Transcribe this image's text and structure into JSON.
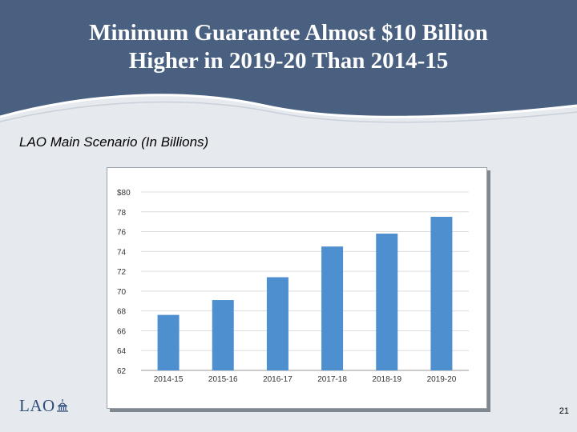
{
  "slide": {
    "title_line1": "Minimum Guarantee Almost $10 Billion",
    "title_line2": "Higher in 2019-20 Than 2014-15",
    "subtitle": "LAO Main Scenario (In Billions)",
    "logo_text": "LAO",
    "page_number": "21"
  },
  "colors": {
    "header_bg": "#4a6080",
    "bar": "#4e8fd0",
    "grid": "#dcdcdc"
  },
  "chart_data": {
    "type": "bar",
    "categories": [
      "2014-15",
      "2015-16",
      "2016-17",
      "2017-18",
      "2018-19",
      "2019-20"
    ],
    "values": [
      67.6,
      69.1,
      71.4,
      74.5,
      75.8,
      77.5
    ],
    "ylim": [
      62,
      80
    ],
    "yticks": [
      62,
      64,
      66,
      68,
      70,
      72,
      74,
      76,
      78,
      80
    ],
    "ytick_labels": [
      "62",
      "64",
      "66",
      "68",
      "70",
      "72",
      "74",
      "76",
      "78",
      "$80"
    ],
    "grid": true,
    "legend": "none"
  }
}
